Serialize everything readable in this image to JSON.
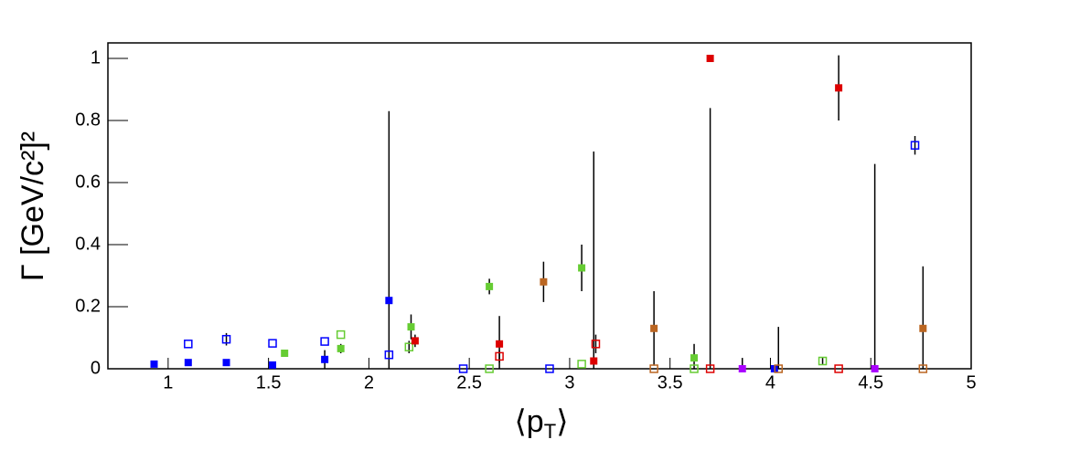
{
  "chart_data": {
    "type": "scatter",
    "ylabel": "Γ [GeV/c²]²",
    "xlabel_parts": [
      "⟨p",
      "T",
      "⟩"
    ],
    "xlim": [
      0.7,
      5
    ],
    "ylim": [
      0,
      1.05
    ],
    "xticks": [
      1,
      1.5,
      2,
      2.5,
      3,
      3.5,
      4,
      4.5,
      5
    ],
    "yticks": [
      0,
      0.2,
      0.4,
      0.6,
      0.8,
      1
    ],
    "series": [
      {
        "color": "#0000ff",
        "marker": "filled",
        "x": [
          0.93,
          1.1,
          1.29,
          1.52,
          1.78,
          2.1,
          4.02
        ],
        "values": [
          0.015,
          0.02,
          0.02,
          0.012,
          0.03,
          0.22,
          0.0
        ],
        "errors": [
          null,
          null,
          null,
          0.01,
          0.03,
          0.61,
          null
        ]
      },
      {
        "color": "#0000ff",
        "marker": "open",
        "x": [
          1.1,
          1.29,
          1.52,
          1.78,
          2.1,
          2.47,
          2.9,
          4.72
        ],
        "values": [
          0.08,
          0.095,
          0.082,
          0.088,
          0.045,
          0.0,
          0.0,
          0.72
        ],
        "errors": [
          null,
          0.02,
          null,
          null,
          null,
          null,
          null,
          0.03
        ]
      },
      {
        "color": "#66cc33",
        "marker": "filled",
        "x": [
          1.58,
          1.86,
          2.21,
          2.6,
          3.06,
          3.62
        ],
        "values": [
          0.05,
          0.065,
          0.135,
          0.265,
          0.325,
          0.035
        ],
        "errors": [
          null,
          0.015,
          0.04,
          0.025,
          0.075,
          0.045
        ]
      },
      {
        "color": "#66cc33",
        "marker": "open",
        "x": [
          1.86,
          2.2,
          2.6,
          3.06,
          3.62,
          4.26
        ],
        "values": [
          0.11,
          0.07,
          0.0,
          0.015,
          0.0,
          0.025
        ],
        "errors": [
          null,
          0.02,
          null,
          null,
          null,
          0.01
        ]
      },
      {
        "color": "#dd0000",
        "marker": "filled",
        "x": [
          2.23,
          2.65,
          3.12,
          3.7,
          4.34
        ],
        "values": [
          0.09,
          0.08,
          0.025,
          1.0,
          0.905
        ],
        "errors": [
          0.02,
          0.09,
          0.675,
          null,
          0.105
        ]
      },
      {
        "color": "#dd0000",
        "marker": "open",
        "x": [
          2.65,
          3.13,
          3.7,
          4.34
        ],
        "values": [
          0.04,
          0.08,
          0.0,
          0.0
        ],
        "errors": [
          0.02,
          0.03,
          0.84,
          null
        ]
      },
      {
        "color": "#bb6622",
        "marker": "filled",
        "x": [
          2.87,
          3.42,
          4.76
        ],
        "values": [
          0.28,
          0.13,
          0.13
        ],
        "errors": [
          0.065,
          0.12,
          0.2
        ]
      },
      {
        "color": "#bb6622",
        "marker": "open",
        "x": [
          3.42,
          4.04,
          4.76
        ],
        "values": [
          0.0,
          0.0,
          0.0
        ],
        "errors": [
          null,
          0.135,
          null
        ]
      },
      {
        "color": "#aa00ff",
        "marker": "filled",
        "x": [
          3.86,
          4.52
        ],
        "values": [
          0.0,
          0.0
        ],
        "errors": [
          0.035,
          0.66
        ]
      }
    ]
  }
}
